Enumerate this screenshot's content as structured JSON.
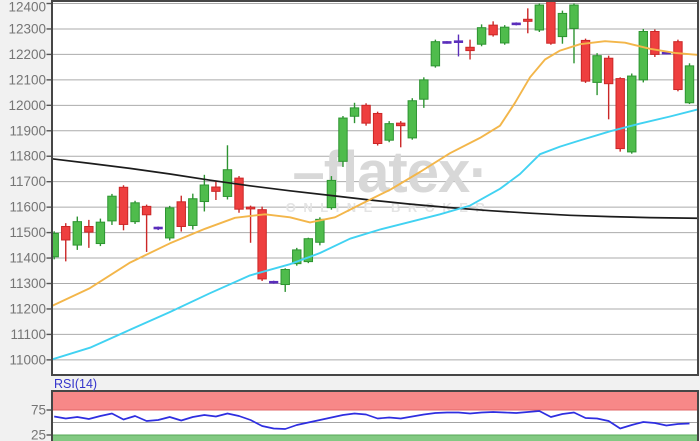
{
  "chart_data": {
    "type": "candlestick",
    "title": "",
    "watermark": {
      "line1": "–flatex·",
      "line2": "ONLINE BROKER"
    },
    "y_axis": {
      "max": 12400,
      "min": 11000,
      "step": 100,
      "labels": [
        "12400",
        "12300",
        "12200",
        "12100",
        "12000",
        "11900",
        "11800",
        "11700",
        "11600",
        "11500",
        "11400",
        "11300",
        "11200",
        "11100",
        "11000"
      ]
    },
    "colors": {
      "up_fill": "#4fbc4c",
      "up_stroke": "#2d9431",
      "down_fill": "#ee3f3f",
      "down_stroke": "#cb2727",
      "flat": "#5a2dbb",
      "ma_black": "#1c1c1c",
      "ma_orange": "#f3b64a",
      "ma_cyan": "#41d2f2",
      "grid": "#ababab",
      "border": "#464646",
      "rsi_line": "#2e2ee0",
      "rsi_overbought_band": "#f78888",
      "rsi_oversold_band": "#82c982"
    },
    "candles": [
      [
        11405,
        11505,
        11395,
        11497,
        "u"
      ],
      [
        11524,
        11537,
        11387,
        11471,
        "d"
      ],
      [
        11451,
        11563,
        11432,
        11543,
        "u"
      ],
      [
        11524,
        11550,
        11440,
        11502,
        "d"
      ],
      [
        11457,
        11555,
        11447,
        11541,
        "u"
      ],
      [
        11546,
        11652,
        11530,
        11643,
        "u"
      ],
      [
        11678,
        11686,
        11509,
        11532,
        "d"
      ],
      [
        11543,
        11625,
        11534,
        11617,
        "u"
      ],
      [
        11603,
        11610,
        11424,
        11570,
        "d"
      ],
      [
        11518,
        11524,
        11510,
        11518,
        "f"
      ],
      [
        11479,
        11605,
        11469,
        11597,
        "u"
      ],
      [
        11621,
        11645,
        11504,
        11524,
        "d"
      ],
      [
        11528,
        11653,
        11512,
        11633,
        "u"
      ],
      [
        11622,
        11727,
        11583,
        11687,
        "u"
      ],
      [
        11679,
        11700,
        11628,
        11662,
        "d"
      ],
      [
        11642,
        11843,
        11630,
        11747,
        "u"
      ],
      [
        11714,
        11722,
        11578,
        11592,
        "d"
      ],
      [
        11600,
        11606,
        11460,
        11593,
        "d"
      ],
      [
        11590,
        11602,
        11310,
        11318,
        "d"
      ],
      [
        11305,
        11311,
        11299,
        11305,
        "f"
      ],
      [
        11296,
        11360,
        11267,
        11355,
        "u"
      ],
      [
        11378,
        11440,
        11370,
        11432,
        "u"
      ],
      [
        11386,
        11480,
        11380,
        11476,
        "u"
      ],
      [
        11462,
        11560,
        11450,
        11552,
        "u"
      ],
      [
        11598,
        11722,
        11590,
        11705,
        "u"
      ],
      [
        11780,
        11958,
        11758,
        11950,
        "u"
      ],
      [
        11957,
        12010,
        11930,
        11990,
        "u"
      ],
      [
        12000,
        12008,
        11920,
        11930,
        "d"
      ],
      [
        11968,
        11975,
        11842,
        11850,
        "d"
      ],
      [
        11863,
        11938,
        11855,
        11928,
        "u"
      ],
      [
        11930,
        11938,
        11835,
        11920,
        "d"
      ],
      [
        11872,
        12028,
        11865,
        12018,
        "u"
      ],
      [
        12024,
        12110,
        11990,
        12100,
        "u"
      ],
      [
        12155,
        12258,
        12148,
        12250,
        "u"
      ],
      [
        12247,
        12252,
        12242,
        12247,
        "f"
      ],
      [
        12246,
        12278,
        12192,
        12250,
        "f"
      ],
      [
        12228,
        12258,
        12180,
        12215,
        "d"
      ],
      [
        12240,
        12318,
        12232,
        12305,
        "u"
      ],
      [
        12315,
        12330,
        12270,
        12277,
        "d"
      ],
      [
        12245,
        12315,
        12238,
        12307,
        "u"
      ],
      [
        12320,
        12326,
        12314,
        12320,
        "f"
      ],
      [
        12338,
        12381,
        12283,
        12330,
        "d"
      ],
      [
        12296,
        12400,
        12288,
        12394,
        "u"
      ],
      [
        12420,
        12426,
        12238,
        12244,
        "d"
      ],
      [
        12270,
        12372,
        12242,
        12361,
        "u"
      ],
      [
        12302,
        12400,
        12165,
        12394,
        "u"
      ],
      [
        12255,
        12262,
        12088,
        12095,
        "d"
      ],
      [
        12090,
        12205,
        12040,
        12195,
        "u"
      ],
      [
        12185,
        12195,
        11945,
        12085,
        "d"
      ],
      [
        12105,
        12110,
        11818,
        11830,
        "d"
      ],
      [
        11817,
        12125,
        11810,
        12115,
        "u"
      ],
      [
        12100,
        12300,
        12090,
        12290,
        "u"
      ],
      [
        12290,
        12298,
        12190,
        12200,
        "d"
      ],
      [
        12205,
        12210,
        12200,
        12205,
        "f"
      ],
      [
        12250,
        12258,
        12055,
        12062,
        "d"
      ],
      [
        12010,
        12165,
        12005,
        12155,
        "u"
      ]
    ],
    "moving_averages": [
      {
        "name": "ma-slow-black",
        "color": "#1c1c1c",
        "width": 1.7,
        "points": [
          [
            52,
            11790
          ],
          [
            90,
            11772
          ],
          [
            130,
            11752
          ],
          [
            170,
            11730
          ],
          [
            210,
            11706
          ],
          [
            250,
            11684
          ],
          [
            290,
            11664
          ],
          [
            330,
            11646
          ],
          [
            370,
            11628
          ],
          [
            410,
            11612
          ],
          [
            450,
            11598
          ],
          [
            490,
            11586
          ],
          [
            530,
            11576
          ],
          [
            570,
            11568
          ],
          [
            610,
            11563
          ],
          [
            650,
            11559
          ],
          [
            698,
            11556
          ]
        ]
      },
      {
        "name": "ma-medium-orange",
        "color": "#f3b64a",
        "width": 1.9,
        "points": [
          [
            52,
            11212
          ],
          [
            90,
            11282
          ],
          [
            130,
            11382
          ],
          [
            170,
            11458
          ],
          [
            205,
            11515
          ],
          [
            235,
            11558
          ],
          [
            265,
            11572
          ],
          [
            290,
            11560
          ],
          [
            310,
            11540
          ],
          [
            335,
            11560
          ],
          [
            360,
            11610
          ],
          [
            390,
            11668
          ],
          [
            420,
            11738
          ],
          [
            450,
            11812
          ],
          [
            480,
            11872
          ],
          [
            500,
            11920
          ],
          [
            515,
            12010
          ],
          [
            530,
            12110
          ],
          [
            545,
            12180
          ],
          [
            560,
            12215
          ],
          [
            580,
            12240
          ],
          [
            605,
            12252
          ],
          [
            625,
            12246
          ],
          [
            650,
            12222
          ],
          [
            675,
            12206
          ],
          [
            698,
            12198
          ]
        ]
      },
      {
        "name": "ma-fast-cyan",
        "color": "#41d2f2",
        "width": 1.9,
        "points": [
          [
            52,
            11002
          ],
          [
            90,
            11048
          ],
          [
            130,
            11118
          ],
          [
            170,
            11188
          ],
          [
            210,
            11262
          ],
          [
            250,
            11332
          ],
          [
            290,
            11376
          ],
          [
            320,
            11420
          ],
          [
            350,
            11476
          ],
          [
            380,
            11512
          ],
          [
            410,
            11542
          ],
          [
            440,
            11572
          ],
          [
            470,
            11606
          ],
          [
            500,
            11672
          ],
          [
            520,
            11730
          ],
          [
            540,
            11808
          ],
          [
            560,
            11838
          ],
          [
            580,
            11862
          ],
          [
            610,
            11898
          ],
          [
            640,
            11928
          ],
          [
            670,
            11956
          ],
          [
            698,
            11984
          ]
        ]
      }
    ],
    "rsi": {
      "label": "RSI(14)",
      "period": 14,
      "axis_labels": [
        "75",
        "25"
      ],
      "levels": {
        "overbought": 75,
        "mid": 50,
        "oversold": 25
      },
      "values": [
        62,
        58,
        61,
        57,
        63,
        68,
        56,
        63,
        53,
        55,
        61,
        54,
        61,
        65,
        62,
        68,
        63,
        55,
        43,
        38,
        37,
        45,
        50,
        55,
        60,
        65,
        68,
        66,
        58,
        60,
        58,
        62,
        66,
        69,
        70,
        70,
        68,
        70,
        71,
        70,
        69,
        71,
        73,
        61,
        67,
        70,
        59,
        58,
        53,
        38,
        45,
        51,
        49,
        44,
        47,
        48
      ]
    }
  }
}
